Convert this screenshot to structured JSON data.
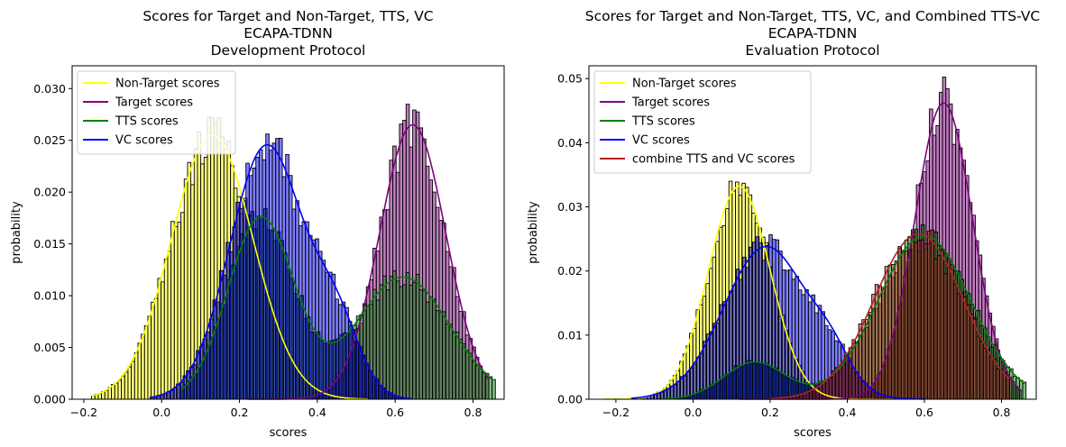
{
  "chart_data": [
    {
      "type": "histogram",
      "title_lines": [
        "Scores for Target and Non-Target, TTS, VC",
        "ECAPA-TDNN",
        "Development Protocol"
      ],
      "xlabel": "scores",
      "ylabel": "probability",
      "xlim": [
        -0.23,
        0.88
      ],
      "ylim": [
        0,
        0.0322
      ],
      "xticks": [
        -0.2,
        0.0,
        0.2,
        0.4,
        0.6,
        0.8
      ],
      "xtick_labels": [
        "−0.2",
        "0.0",
        "0.2",
        "0.4",
        "0.6",
        "0.8"
      ],
      "yticks": [
        0.0,
        0.005,
        0.01,
        0.015,
        0.02,
        0.025,
        0.03
      ],
      "ytick_labels": [
        "0.000",
        "0.005",
        "0.010",
        "0.015",
        "0.020",
        "0.025",
        "0.030"
      ],
      "legend_position": "upper left",
      "series": [
        {
          "name": "Non-Target scores",
          "color": "#ffff00",
          "range": [
            -0.18,
            0.53
          ],
          "components": [
            {
              "w": 0.0255,
              "mu": 0.13,
              "sigma": 0.105
            }
          ]
        },
        {
          "name": "Target scores",
          "color": "#800080",
          "range": [
            0.22,
            0.84
          ],
          "components": [
            {
              "w": 0.0265,
              "mu": 0.645,
              "sigma": 0.085
            }
          ]
        },
        {
          "name": "TTS scores",
          "color": "#008000",
          "range": [
            0.05,
            0.85
          ],
          "components": [
            {
              "w": 0.0175,
              "mu": 0.255,
              "sigma": 0.085
            },
            {
              "w": 0.0118,
              "mu": 0.62,
              "sigma": 0.12
            }
          ]
        },
        {
          "name": "VC scores",
          "color": "#0000ff",
          "range": [
            -0.03,
            0.64
          ],
          "components": [
            {
              "w": 0.0245,
              "mu": 0.27,
              "sigma": 0.095
            },
            {
              "w": 0.0065,
              "mu": 0.45,
              "sigma": 0.06
            }
          ]
        }
      ]
    },
    {
      "type": "histogram",
      "title_lines": [
        "Scores for Target and Non-Target, TTS, VC, and Combined TTS-VC",
        "ECAPA-TDNN",
        "Evaluation Protocol"
      ],
      "xlabel": "scores",
      "ylabel": "probability",
      "xlim": [
        -0.27,
        0.89
      ],
      "ylim": [
        0,
        0.052
      ],
      "xticks": [
        -0.2,
        0.0,
        0.2,
        0.4,
        0.6,
        0.8
      ],
      "xtick_labels": [
        "−0.2",
        "0.0",
        "0.2",
        "0.4",
        "0.6",
        "0.8"
      ],
      "yticks": [
        0.0,
        0.01,
        0.02,
        0.03,
        0.04,
        0.05
      ],
      "ytick_labels": [
        "0.00",
        "0.01",
        "0.02",
        "0.03",
        "0.04",
        "0.05"
      ],
      "legend_position": "upper left",
      "series": [
        {
          "name": "Non-Target scores",
          "color": "#ffff00",
          "range": [
            -0.23,
            0.52
          ],
          "components": [
            {
              "w": 0.0332,
              "mu": 0.12,
              "sigma": 0.08
            }
          ]
        },
        {
          "name": "Target scores",
          "color": "#800080",
          "range": [
            0.12,
            0.85
          ],
          "components": [
            {
              "w": 0.0462,
              "mu": 0.65,
              "sigma": 0.075
            }
          ]
        },
        {
          "name": "TTS scores",
          "color": "#008000",
          "range": [
            -0.08,
            0.86
          ],
          "components": [
            {
              "w": 0.0058,
              "mu": 0.16,
              "sigma": 0.08
            },
            {
              "w": 0.0255,
              "mu": 0.6,
              "sigma": 0.12
            }
          ]
        },
        {
          "name": "VC scores",
          "color": "#0000ff",
          "range": [
            -0.16,
            0.6
          ],
          "components": [
            {
              "w": 0.0238,
              "mu": 0.19,
              "sigma": 0.11
            },
            {
              "w": 0.004,
              "mu": 0.36,
              "sigma": 0.05
            }
          ]
        },
        {
          "name": "combine TTS and VC scores",
          "color": "#b22222",
          "range": [
            0.2,
            0.82
          ],
          "components": [
            {
              "w": 0.0258,
              "mu": 0.585,
              "sigma": 0.115
            }
          ]
        }
      ]
    }
  ]
}
